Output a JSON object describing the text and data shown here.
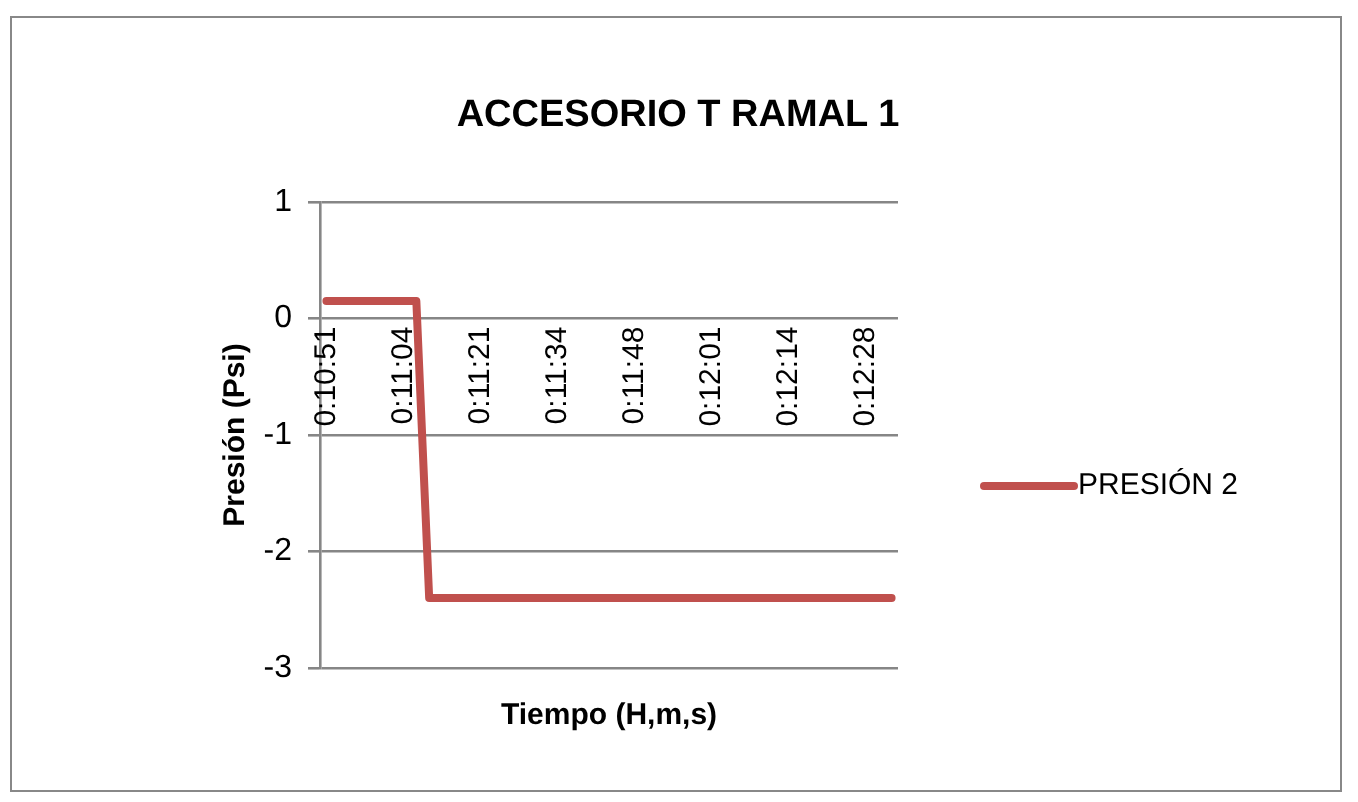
{
  "chart_data": {
    "type": "line",
    "title": "ACCESORIO T RAMAL 1",
    "xlabel": "Tiempo (H,m,s)",
    "ylabel": "Presión (Psi)",
    "categories": [
      "0:10:51",
      null,
      null,
      null,
      null,
      null,
      "0:11:04",
      null,
      null,
      null,
      null,
      null,
      "0:11:21",
      null,
      null,
      null,
      null,
      null,
      "0:11:34",
      null,
      null,
      null,
      null,
      null,
      "0:11:48",
      null,
      null,
      null,
      null,
      null,
      "0:12:01",
      null,
      null,
      null,
      null,
      null,
      "0:12:14",
      null,
      null,
      null,
      null,
      null,
      "0:12:28",
      null,
      null
    ],
    "series": [
      {
        "name": "PRESIÓN 2",
        "color": "#c0504d",
        "values": [
          0.15,
          0.15,
          0.15,
          0.15,
          0.15,
          0.15,
          0.15,
          0.15,
          -2.4,
          -2.4,
          -2.4,
          -2.4,
          -2.4,
          -2.4,
          -2.4,
          -2.4,
          -2.4,
          -2.4,
          -2.4,
          -2.4,
          -2.4,
          -2.4,
          -2.4,
          -2.4,
          -2.4,
          -2.4,
          -2.4,
          -2.4,
          -2.4,
          -2.4,
          -2.4,
          -2.4,
          -2.4,
          -2.4,
          -2.4,
          -2.4,
          -2.4,
          -2.4,
          -2.4,
          -2.4,
          -2.4,
          -2.4,
          -2.4,
          -2.4,
          -2.4
        ]
      }
    ],
    "ylim": [
      -3,
      1
    ],
    "yticks": [
      -3,
      -2,
      -1,
      0,
      1
    ],
    "grid": "y",
    "legend": "right",
    "marker": "none",
    "line_style": "solid"
  }
}
